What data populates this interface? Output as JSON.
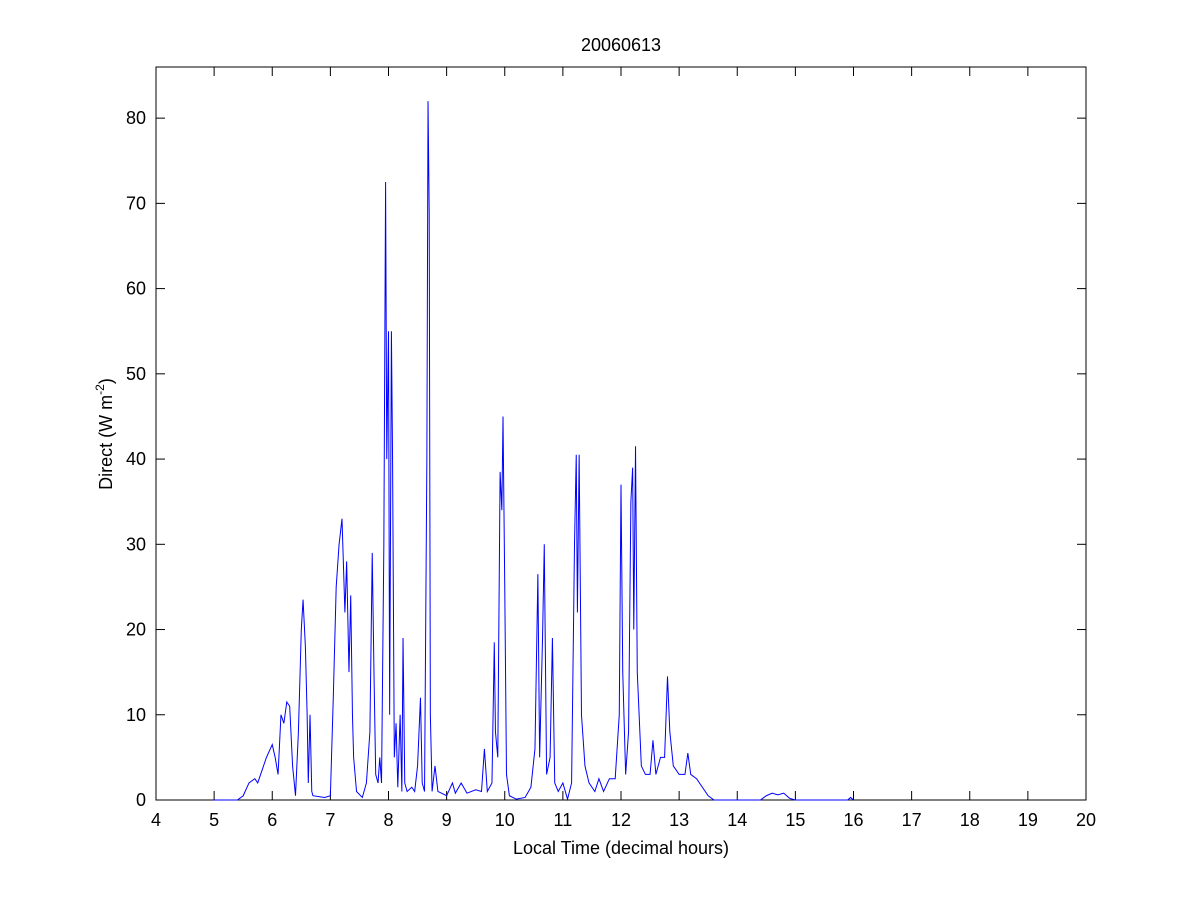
{
  "chart_data": {
    "type": "line",
    "title": "20060613",
    "xlabel": "Local Time (decimal hours)",
    "ylabel": {
      "text": "Direct (W m",
      "superscript": "-2",
      "suffix": ")"
    },
    "xlim": [
      4,
      20
    ],
    "xticks": [
      4,
      5,
      6,
      7,
      8,
      9,
      10,
      11,
      12,
      13,
      14,
      15,
      16,
      17,
      18,
      19,
      20
    ],
    "ylim": [
      0,
      86
    ],
    "yticks": [
      0,
      10,
      20,
      30,
      40,
      50,
      60,
      70,
      80
    ],
    "grid": false,
    "series": [
      {
        "color": "#0000ff",
        "x": [
          5.0,
          5.4,
          5.5,
          5.6,
          5.7,
          5.75,
          5.8,
          5.9,
          6.0,
          6.05,
          6.1,
          6.15,
          6.2,
          6.25,
          6.3,
          6.35,
          6.4,
          6.45,
          6.5,
          6.53,
          6.57,
          6.6,
          6.62,
          6.65,
          6.68,
          6.7,
          6.9,
          7.0,
          7.05,
          7.1,
          7.15,
          7.2,
          7.25,
          7.28,
          7.32,
          7.35,
          7.38,
          7.4,
          7.45,
          7.55,
          7.62,
          7.68,
          7.72,
          7.75,
          7.78,
          7.82,
          7.85,
          7.88,
          7.92,
          7.95,
          7.97,
          8.0,
          8.02,
          8.05,
          8.07,
          8.1,
          8.13,
          8.16,
          8.2,
          8.23,
          8.25,
          8.28,
          8.32,
          8.4,
          8.45,
          8.5,
          8.55,
          8.58,
          8.62,
          8.66,
          8.68,
          8.7,
          8.72,
          8.75,
          8.8,
          8.85,
          9.0,
          9.1,
          9.15,
          9.25,
          9.35,
          9.5,
          9.6,
          9.65,
          9.7,
          9.78,
          9.82,
          9.84,
          9.88,
          9.92,
          9.95,
          9.97,
          10.0,
          10.03,
          10.08,
          10.2,
          10.35,
          10.45,
          10.52,
          10.57,
          10.6,
          10.65,
          10.68,
          10.72,
          10.78,
          10.82,
          10.86,
          10.92,
          11.0,
          11.08,
          11.15,
          11.2,
          11.23,
          11.25,
          11.28,
          11.32,
          11.38,
          11.45,
          11.55,
          11.62,
          11.7,
          11.8,
          11.9,
          11.97,
          12.0,
          12.03,
          12.08,
          12.13,
          12.17,
          12.2,
          12.22,
          12.25,
          12.28,
          12.35,
          12.42,
          12.5,
          12.55,
          12.6,
          12.68,
          12.75,
          12.8,
          12.84,
          12.9,
          13.0,
          13.1,
          13.15,
          13.2,
          13.3,
          13.4,
          13.5,
          13.6,
          14.4,
          14.5,
          14.6,
          14.7,
          14.8,
          14.9,
          15.0,
          15.9,
          15.95,
          16.0
        ],
        "values": [
          0,
          0,
          0.5,
          2,
          2.5,
          2,
          3,
          5,
          6.5,
          5,
          3,
          10,
          9,
          11.5,
          11,
          4,
          0.5,
          8,
          20,
          23.5,
          18,
          10,
          2,
          10,
          1,
          0.5,
          0.3,
          0.5,
          12,
          25,
          30,
          33,
          22,
          28,
          15,
          24,
          10,
          5,
          1,
          0.3,
          2,
          8,
          29,
          15,
          3,
          2,
          5,
          2,
          30,
          72.5,
          40,
          55,
          10,
          55,
          40,
          5,
          9,
          1.5,
          10,
          1,
          19,
          2,
          1,
          1.5,
          1,
          4,
          12,
          2,
          1,
          40,
          82,
          69,
          10,
          1,
          4,
          1,
          0.5,
          2,
          0.8,
          2,
          0.8,
          1.2,
          1,
          6,
          1,
          2,
          18.5,
          8,
          5,
          38.5,
          34,
          45,
          25,
          3,
          0.5,
          0.1,
          0.3,
          1.5,
          6,
          26.5,
          5,
          19,
          30,
          3,
          5,
          19,
          2,
          1,
          2,
          0.1,
          2,
          30,
          40.5,
          22,
          40.5,
          10,
          4,
          2,
          1,
          2.5,
          1,
          2.5,
          2.5,
          10,
          37,
          15,
          3,
          8,
          35,
          39,
          20,
          41.5,
          15,
          4,
          3,
          3,
          7,
          3,
          5,
          5,
          14.5,
          8,
          4,
          3,
          3,
          5.5,
          3,
          2.5,
          1.5,
          0.5,
          0,
          0,
          0.5,
          0.8,
          0.6,
          0.8,
          0.2,
          0,
          0,
          0.3,
          0
        ]
      }
    ]
  }
}
